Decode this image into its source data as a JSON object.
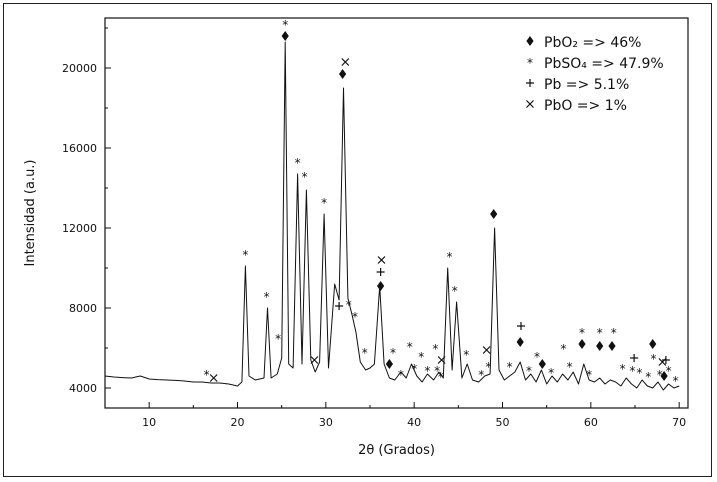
{
  "chart_data": {
    "type": "line",
    "xlabel": "2θ (Grados)",
    "ylabel": "Intensidad (a.u.)",
    "xlim": [
      5,
      71
    ],
    "ylim": [
      3000,
      22500
    ],
    "xticks": [
      10,
      20,
      30,
      40,
      50,
      60,
      70
    ],
    "yticks": [
      4000,
      8000,
      12000,
      16000,
      20000
    ],
    "grid": false,
    "legend_position": "top-right",
    "series": [
      {
        "x": [
          5,
          6,
          7,
          8,
          9,
          10,
          11,
          12,
          13,
          14,
          15,
          16,
          17,
          18,
          19,
          20,
          20.5,
          20.9,
          21.3,
          22,
          23,
          23.4,
          23.8,
          24.5,
          25.0,
          25.4,
          25.8,
          26.3,
          26.8,
          27.3,
          27.8,
          28.3,
          28.8,
          29.3,
          29.8,
          30.3,
          31.0,
          31.5,
          32.0,
          32.5,
          33.0,
          33.4,
          33.9,
          34.5,
          35.0,
          35.5,
          36.1,
          36.6,
          37.2,
          37.8,
          38.5,
          39.1,
          39.7,
          40.3,
          40.9,
          41.5,
          42.2,
          42.8,
          43.3,
          43.8,
          44.3,
          44.8,
          45.4,
          46.0,
          46.6,
          47.3,
          48.0,
          48.6,
          49.1,
          49.6,
          50.2,
          50.8,
          51.4,
          52.0,
          52.6,
          53.2,
          53.8,
          54.4,
          55.0,
          55.6,
          56.2,
          56.8,
          57.4,
          58.0,
          58.6,
          59.2,
          59.8,
          60.4,
          61.0,
          61.6,
          62.2,
          62.8,
          63.4,
          64.0,
          64.6,
          65.2,
          65.8,
          66.4,
          67.0,
          67.6,
          68.2,
          68.8,
          69.4,
          70
        ],
        "y": [
          4600,
          4550,
          4520,
          4500,
          4600,
          4450,
          4420,
          4400,
          4380,
          4350,
          4300,
          4300,
          4250,
          4250,
          4200,
          4100,
          4300,
          10100,
          4600,
          4400,
          4500,
          8000,
          4500,
          4700,
          5500,
          21300,
          5200,
          5000,
          14700,
          5200,
          13900,
          5400,
          4800,
          5300,
          12700,
          5000,
          9200,
          8400,
          19000,
          8500,
          7600,
          6800,
          5300,
          4900,
          5000,
          5200,
          9100,
          5200,
          4500,
          4400,
          4800,
          4500,
          5200,
          4600,
          4300,
          4700,
          4400,
          4800,
          4500,
          10000,
          4900,
          8300,
          4500,
          5200,
          4400,
          4300,
          4600,
          4700,
          12000,
          4900,
          4400,
          4600,
          4800,
          5300,
          4400,
          4700,
          4300,
          4900,
          4200,
          4600,
          4300,
          4700,
          4400,
          4800,
          4200,
          5200,
          4400,
          4300,
          4500,
          4200,
          4400,
          4300,
          4100,
          4500,
          4200,
          4000,
          4400,
          4100,
          4000,
          4300,
          3900,
          4200,
          4000,
          4100
        ]
      }
    ],
    "legend": [
      {
        "symbol": "diamond",
        "text": "PbO₂ => 46%"
      },
      {
        "symbol": "asterisk",
        "text": "PbSO₄ => 47.9%"
      },
      {
        "symbol": "plus",
        "text": "Pb => 5.1%"
      },
      {
        "symbol": "cross",
        "text": "PbO => 1%"
      }
    ],
    "annotations": [
      {
        "x": 16.5,
        "y": 4700,
        "symbol": "asterisk"
      },
      {
        "x": 17.3,
        "y": 4500,
        "symbol": "cross"
      },
      {
        "x": 20.9,
        "y": 10700,
        "symbol": "asterisk"
      },
      {
        "x": 23.3,
        "y": 8600,
        "symbol": "asterisk"
      },
      {
        "x": 24.6,
        "y": 6500,
        "symbol": "asterisk"
      },
      {
        "x": 25.4,
        "y": 21600,
        "symbol": "diamond"
      },
      {
        "x": 25.4,
        "y": 22200,
        "symbol": "asterisk"
      },
      {
        "x": 26.8,
        "y": 15300,
        "symbol": "asterisk"
      },
      {
        "x": 27.6,
        "y": 14600,
        "symbol": "asterisk"
      },
      {
        "x": 28.7,
        "y": 5400,
        "symbol": "cross"
      },
      {
        "x": 29.8,
        "y": 13300,
        "symbol": "asterisk"
      },
      {
        "x": 31.5,
        "y": 8100,
        "symbol": "plus"
      },
      {
        "x": 31.9,
        "y": 19700,
        "symbol": "diamond"
      },
      {
        "x": 32.2,
        "y": 20300,
        "symbol": "cross"
      },
      {
        "x": 32.6,
        "y": 8200,
        "symbol": "asterisk"
      },
      {
        "x": 33.3,
        "y": 7600,
        "symbol": "asterisk"
      },
      {
        "x": 34.4,
        "y": 5800,
        "symbol": "asterisk"
      },
      {
        "x": 36.2,
        "y": 9100,
        "symbol": "diamond"
      },
      {
        "x": 36.2,
        "y": 9800,
        "symbol": "plus"
      },
      {
        "x": 36.3,
        "y": 10400,
        "symbol": "cross"
      },
      {
        "x": 37.2,
        "y": 5200,
        "symbol": "diamond"
      },
      {
        "x": 37.6,
        "y": 5800,
        "symbol": "asterisk"
      },
      {
        "x": 38.5,
        "y": 4700,
        "symbol": "asterisk"
      },
      {
        "x": 39.5,
        "y": 6100,
        "symbol": "asterisk"
      },
      {
        "x": 40.0,
        "y": 5000,
        "symbol": "asterisk"
      },
      {
        "x": 40.8,
        "y": 5600,
        "symbol": "asterisk"
      },
      {
        "x": 41.5,
        "y": 4900,
        "symbol": "asterisk"
      },
      {
        "x": 42.4,
        "y": 6000,
        "symbol": "asterisk"
      },
      {
        "x": 42.6,
        "y": 4900,
        "symbol": "asterisk"
      },
      {
        "x": 43.1,
        "y": 5400,
        "symbol": "cross"
      },
      {
        "x": 43.0,
        "y": 4600,
        "symbol": "asterisk"
      },
      {
        "x": 44.0,
        "y": 10600,
        "symbol": "asterisk"
      },
      {
        "x": 44.6,
        "y": 8900,
        "symbol": "asterisk"
      },
      {
        "x": 45.9,
        "y": 5700,
        "symbol": "asterisk"
      },
      {
        "x": 47.6,
        "y": 4700,
        "symbol": "asterisk"
      },
      {
        "x": 48.2,
        "y": 5900,
        "symbol": "cross"
      },
      {
        "x": 48.4,
        "y": 5100,
        "symbol": "asterisk"
      },
      {
        "x": 49.0,
        "y": 12700,
        "symbol": "diamond"
      },
      {
        "x": 50.8,
        "y": 5100,
        "symbol": "asterisk"
      },
      {
        "x": 52.0,
        "y": 6300,
        "symbol": "diamond"
      },
      {
        "x": 52.1,
        "y": 7100,
        "symbol": "plus"
      },
      {
        "x": 53.0,
        "y": 4900,
        "symbol": "asterisk"
      },
      {
        "x": 53.9,
        "y": 5600,
        "symbol": "asterisk"
      },
      {
        "x": 54.5,
        "y": 5200,
        "symbol": "diamond"
      },
      {
        "x": 55.5,
        "y": 4800,
        "symbol": "asterisk"
      },
      {
        "x": 56.9,
        "y": 6000,
        "symbol": "asterisk"
      },
      {
        "x": 57.6,
        "y": 5100,
        "symbol": "asterisk"
      },
      {
        "x": 59.0,
        "y": 6200,
        "symbol": "diamond"
      },
      {
        "x": 59.0,
        "y": 6800,
        "symbol": "asterisk"
      },
      {
        "x": 59.8,
        "y": 4700,
        "symbol": "asterisk"
      },
      {
        "x": 61.0,
        "y": 6100,
        "symbol": "diamond"
      },
      {
        "x": 61.0,
        "y": 6800,
        "symbol": "asterisk"
      },
      {
        "x": 62.4,
        "y": 6100,
        "symbol": "diamond"
      },
      {
        "x": 62.6,
        "y": 6800,
        "symbol": "asterisk"
      },
      {
        "x": 63.6,
        "y": 5000,
        "symbol": "asterisk"
      },
      {
        "x": 64.7,
        "y": 4900,
        "symbol": "asterisk"
      },
      {
        "x": 64.9,
        "y": 5500,
        "symbol": "plus"
      },
      {
        "x": 65.5,
        "y": 4800,
        "symbol": "asterisk"
      },
      {
        "x": 66.5,
        "y": 4600,
        "symbol": "asterisk"
      },
      {
        "x": 67.0,
        "y": 6200,
        "symbol": "diamond"
      },
      {
        "x": 67.1,
        "y": 5500,
        "symbol": "asterisk"
      },
      {
        "x": 67.8,
        "y": 4700,
        "symbol": "asterisk"
      },
      {
        "x": 68.1,
        "y": 5300,
        "symbol": "cross"
      },
      {
        "x": 68.3,
        "y": 4600,
        "symbol": "diamond"
      },
      {
        "x": 68.5,
        "y": 5400,
        "symbol": "plus"
      },
      {
        "x": 68.8,
        "y": 4900,
        "symbol": "asterisk"
      },
      {
        "x": 69.6,
        "y": 4400,
        "symbol": "asterisk"
      }
    ]
  }
}
